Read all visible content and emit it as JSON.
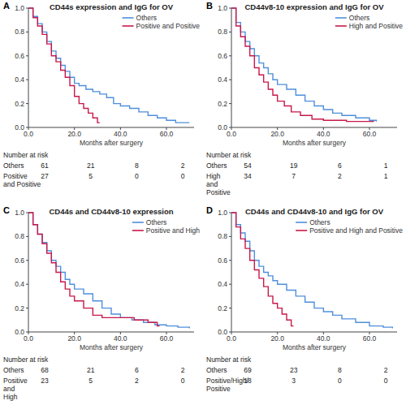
{
  "chart_data": [
    {
      "type": "line",
      "label": "A",
      "title": "CD44s expression and IgG for OV",
      "x_label": "Months after surgery",
      "line_style": "step",
      "legend": "upper right",
      "xlim": [
        0,
        72
      ],
      "xticks": [
        {
          "value": 0,
          "label": "0.0"
        },
        {
          "value": 20,
          "label": "20.0"
        },
        {
          "value": 40,
          "label": "40.0"
        },
        {
          "value": 60,
          "label": "60.0"
        }
      ],
      "ylim": [
        0,
        1
      ],
      "yticks": [
        {
          "value": 0,
          "label": "0.0"
        },
        0.2,
        0.4,
        0.6,
        0.8,
        {
          "value": 1,
          "label": "1.0"
        }
      ],
      "series": [
        {
          "name": "Others",
          "color": "#4f8fdc",
          "x": [
            0,
            2,
            4,
            6,
            8,
            10,
            12,
            14,
            16,
            18,
            20,
            22,
            25,
            28,
            31,
            34,
            37,
            40,
            44,
            48,
            52,
            56,
            60,
            64,
            70
          ],
          "values": [
            1,
            0.93,
            0.87,
            0.8,
            0.72,
            0.64,
            0.58,
            0.52,
            0.47,
            0.42,
            0.37,
            0.35,
            0.32,
            0.3,
            0.28,
            0.25,
            0.2,
            0.18,
            0.16,
            0.13,
            0.1,
            0.08,
            0.06,
            0.04,
            0.04
          ]
        },
        {
          "name": "Positive and Positive",
          "color": "#c8194a",
          "x": [
            0,
            2,
            4,
            6,
            8,
            10,
            12,
            14,
            16,
            18,
            20,
            22,
            24,
            26,
            28,
            30,
            31
          ],
          "values": [
            1,
            0.92,
            0.85,
            0.78,
            0.7,
            0.6,
            0.55,
            0.48,
            0.42,
            0.35,
            0.26,
            0.2,
            0.16,
            0.12,
            0.08,
            0.04,
            0.04
          ]
        }
      ],
      "risk_table": {
        "title": "Number at risk",
        "rows": [
          {
            "label_lines": [
              "Others"
            ],
            "counts": [
              61,
              21,
              8,
              2
            ]
          },
          {
            "label_lines": [
              "Positive",
              "and Positive"
            ],
            "counts": [
              27,
              5,
              0,
              0
            ]
          }
        ]
      }
    },
    {
      "type": "line",
      "label": "B",
      "title": "CD44v8-10 expression and IgG for OV",
      "x_label": "Months after surgery",
      "line_style": "step",
      "legend": "upper right",
      "xlim": [
        0,
        72
      ],
      "xticks": [
        {
          "value": 0,
          "label": "0.0"
        },
        {
          "value": 20,
          "label": "20.0"
        },
        {
          "value": 40,
          "label": "40.0"
        },
        {
          "value": 60,
          "label": "60.0"
        }
      ],
      "ylim": [
        0,
        1
      ],
      "yticks": [
        {
          "value": 0,
          "label": "0.0"
        },
        0.2,
        0.4,
        0.6,
        0.8,
        {
          "value": 1,
          "label": "1.0"
        }
      ],
      "series": [
        {
          "name": "Others",
          "color": "#4f8fdc",
          "x": [
            0,
            2,
            4,
            6,
            8,
            10,
            12,
            14,
            16,
            18,
            20,
            24,
            28,
            32,
            36,
            40,
            44,
            48,
            54,
            60,
            63
          ],
          "values": [
            1,
            0.88,
            0.8,
            0.72,
            0.66,
            0.6,
            0.54,
            0.5,
            0.45,
            0.4,
            0.36,
            0.32,
            0.27,
            0.22,
            0.18,
            0.15,
            0.12,
            0.1,
            0.08,
            0.06,
            0.05
          ]
        },
        {
          "name": "High and Positive",
          "color": "#c8194a",
          "x": [
            0,
            2,
            4,
            6,
            8,
            10,
            12,
            14,
            16,
            18,
            20,
            23,
            26,
            30,
            35,
            40,
            50,
            62
          ],
          "values": [
            1,
            0.85,
            0.76,
            0.68,
            0.6,
            0.5,
            0.44,
            0.38,
            0.32,
            0.27,
            0.22,
            0.18,
            0.13,
            0.1,
            0.07,
            0.06,
            0.05,
            0.05
          ]
        }
      ],
      "risk_table": {
        "title": "Number at risk",
        "rows": [
          {
            "label_lines": [
              "Others"
            ],
            "counts": [
              54,
              19,
              6,
              1
            ]
          },
          {
            "label_lines": [
              "High",
              "and",
              "Positive"
            ],
            "counts": [
              34,
              7,
              2,
              1
            ]
          }
        ]
      }
    },
    {
      "type": "line",
      "label": "C",
      "title": "CD44s and CD44v8-10 expression",
      "x_label": "Months after surgery",
      "line_style": "step",
      "legend": "upper right",
      "xlim": [
        0,
        72
      ],
      "xticks": [
        {
          "value": 0,
          "label": "0.0"
        },
        {
          "value": 20,
          "label": "20.0"
        },
        {
          "value": 40,
          "label": "40.0"
        },
        {
          "value": 60,
          "label": "60.0"
        }
      ],
      "ylim": [
        0,
        1
      ],
      "yticks": [
        {
          "value": 0,
          "label": "0.0"
        },
        0.2,
        0.4,
        0.6,
        0.8,
        {
          "value": 1,
          "label": "1.0"
        }
      ],
      "series": [
        {
          "name": "Others",
          "color": "#4f8fdc",
          "x": [
            0,
            2,
            4,
            6,
            8,
            10,
            12,
            14,
            16,
            18,
            20,
            24,
            28,
            32,
            36,
            40,
            45,
            50,
            55,
            60,
            65,
            70
          ],
          "values": [
            1,
            0.9,
            0.82,
            0.75,
            0.68,
            0.6,
            0.55,
            0.5,
            0.44,
            0.4,
            0.36,
            0.32,
            0.26,
            0.2,
            0.15,
            0.12,
            0.1,
            0.08,
            0.06,
            0.05,
            0.04,
            0.03
          ]
        },
        {
          "name": "Positive and High",
          "color": "#c8194a",
          "x": [
            0,
            2,
            4,
            6,
            8,
            10,
            12,
            14,
            16,
            18,
            20,
            24,
            28,
            32,
            40,
            46,
            52,
            56,
            57
          ],
          "values": [
            1,
            0.9,
            0.82,
            0.74,
            0.66,
            0.58,
            0.5,
            0.42,
            0.36,
            0.3,
            0.26,
            0.2,
            0.14,
            0.12,
            0.12,
            0.1,
            0.08,
            0.05,
            0.05
          ]
        }
      ],
      "risk_table": {
        "title": "Number at risk",
        "rows": [
          {
            "label_lines": [
              "Others"
            ],
            "counts": [
              68,
              21,
              6,
              2
            ]
          },
          {
            "label_lines": [
              "Positive",
              "and",
              "High"
            ],
            "counts": [
              23,
              5,
              2,
              0
            ]
          }
        ]
      }
    },
    {
      "type": "line",
      "label": "D",
      "title": "CD44s and CD44v8-10 and IgG for OV",
      "x_label": "Months after surgery",
      "line_style": "step",
      "legend": "upper right",
      "xlim": [
        0,
        72
      ],
      "xticks": [
        {
          "value": 0,
          "label": "0.0"
        },
        {
          "value": 20,
          "label": "20.0"
        },
        {
          "value": 40,
          "label": "40.0"
        },
        {
          "value": 60,
          "label": "60.0"
        }
      ],
      "ylim": [
        0,
        1
      ],
      "yticks": [
        {
          "value": 0,
          "label": "0.0"
        },
        0.2,
        0.4,
        0.6,
        0.8,
        {
          "value": 1,
          "label": "1.0"
        }
      ],
      "series": [
        {
          "name": "Others",
          "color": "#4f8fdc",
          "x": [
            0,
            2,
            4,
            6,
            8,
            10,
            12,
            14,
            16,
            18,
            20,
            24,
            28,
            32,
            36,
            40,
            44,
            48,
            54,
            60,
            66,
            70
          ],
          "values": [
            1,
            0.9,
            0.83,
            0.76,
            0.68,
            0.6,
            0.55,
            0.5,
            0.47,
            0.43,
            0.4,
            0.35,
            0.3,
            0.25,
            0.2,
            0.17,
            0.14,
            0.11,
            0.08,
            0.05,
            0.04,
            0.03
          ]
        },
        {
          "name": "Positive and High and Positive",
          "color": "#c8194a",
          "x": [
            0,
            2,
            4,
            6,
            8,
            10,
            12,
            14,
            16,
            18,
            20,
            22,
            24,
            26,
            27
          ],
          "values": [
            1,
            0.88,
            0.78,
            0.7,
            0.6,
            0.52,
            0.45,
            0.38,
            0.3,
            0.24,
            0.2,
            0.15,
            0.1,
            0.05,
            0.05
          ]
        }
      ],
      "risk_table": {
        "title": "Number at risk",
        "rows": [
          {
            "label_lines": [
              "Others"
            ],
            "counts": [
              69,
              23,
              8,
              2
            ]
          },
          {
            "label_lines": [
              "Positive/High/",
              "Positive"
            ],
            "counts": [
              18,
              3,
              0,
              0
            ]
          }
        ]
      }
    }
  ]
}
